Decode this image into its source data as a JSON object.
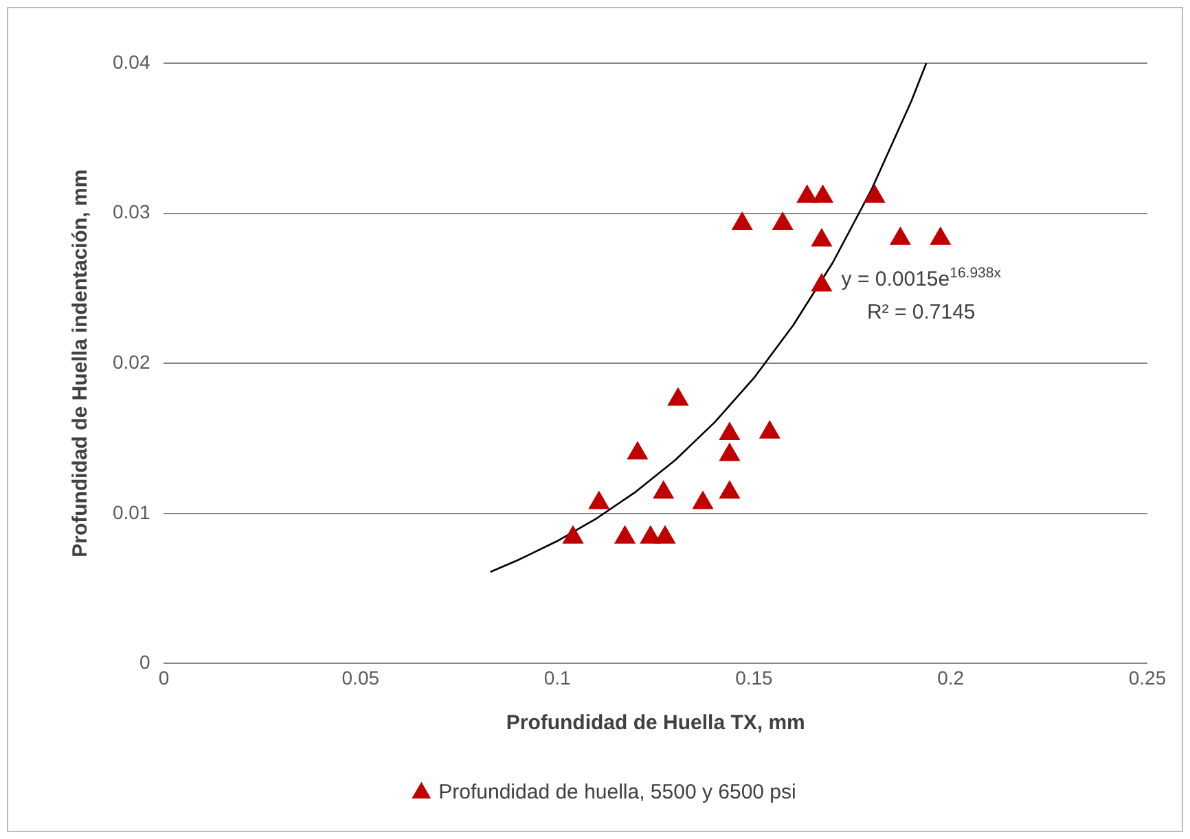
{
  "chart_data": {
    "type": "scatter",
    "xlabel": "Profundidad de Huella TX, mm",
    "ylabel": "Profundidad de Huella indentación, mm",
    "xlim": [
      0,
      0.25
    ],
    "xticks": [
      0,
      0.05,
      0.1,
      0.15,
      0.2,
      0.25
    ],
    "ylim": [
      0,
      0.04
    ],
    "yticks": [
      0,
      0.01,
      0.02,
      0.03,
      0.04
    ],
    "grid": "y",
    "legend": "bottom",
    "marker": "triangle",
    "annotations": [
      "y = 0.0015e$^{16.938x}$",
      "R² = 0.7145"
    ],
    "series": [
      {
        "name": "Profundidad de huella, 5500 y 6500 psi",
        "color": "#c00000",
        "x": [
          0.1307,
          0.1438,
          0.154,
          0.1204,
          0.1438,
          0.1106,
          0.127,
          0.137,
          0.1438,
          0.104,
          0.1172,
          0.1237,
          0.1274,
          0.147,
          0.1573,
          0.1635,
          0.1675,
          0.1807,
          0.1672,
          0.1872,
          0.1974,
          0.1672
        ],
        "values": [
          0.0176,
          0.0153,
          0.0154,
          0.014,
          0.0139,
          0.0107,
          0.0114,
          0.0107,
          0.0114,
          0.0084,
          0.0084,
          0.0084,
          0.0084,
          0.0293,
          0.0293,
          0.0311,
          0.0311,
          0.0311,
          0.0282,
          0.0283,
          0.0283,
          0.0252
        ]
      },
      {
        "type": "line",
        "color": "#000000",
        "marker": "none",
        "x": [
          0.083,
          0.09,
          0.1,
          0.11,
          0.12,
          0.13,
          0.14,
          0.15,
          0.16,
          0.17,
          0.18,
          0.19,
          0.1938
        ],
        "values": [
          0.0061,
          0.00689,
          0.00816,
          0.00967,
          0.01145,
          0.01356,
          0.01607,
          0.01903,
          0.02255,
          0.0267,
          0.03165,
          0.03747,
          0.04
        ]
      }
    ]
  }
}
